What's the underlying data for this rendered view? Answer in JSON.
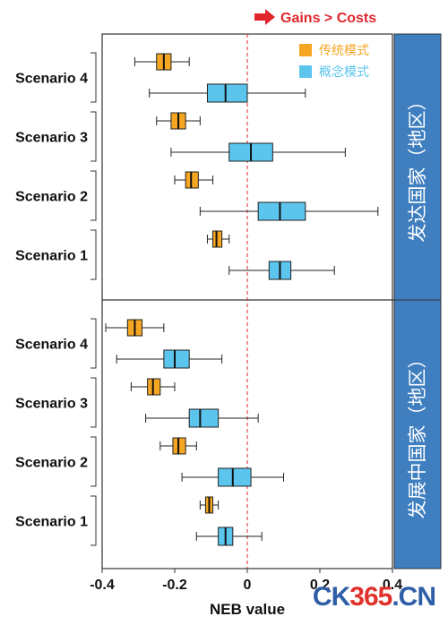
{
  "chart_data": {
    "type": "boxplot",
    "annotation": "Gains > Costs",
    "xlabel": "NEB value",
    "xlim": [
      -0.4,
      0.4
    ],
    "x_ticks": [
      "-0.4",
      "-0.2",
      "0",
      "0.2",
      "0.4"
    ],
    "legend": {
      "position": "top-right",
      "entries": [
        {
          "label": "传统模式",
          "color": "#f5a623"
        },
        {
          "label": "概念模式",
          "color": "#5bc5ee"
        }
      ]
    },
    "panels": [
      {
        "label": "发达国家（地区）",
        "scenarios": [
          {
            "name": "Scenario 4",
            "traditional": {
              "min": -0.31,
              "q1": -0.25,
              "median": -0.23,
              "q3": -0.21,
              "max": -0.16
            },
            "concept": {
              "min": -0.27,
              "q1": -0.11,
              "median": -0.06,
              "q3": 0.0,
              "max": 0.16
            }
          },
          {
            "name": "Scenario 3",
            "traditional": {
              "min": -0.25,
              "q1": -0.21,
              "median": -0.19,
              "q3": -0.17,
              "max": -0.13
            },
            "concept": {
              "min": -0.21,
              "q1": -0.05,
              "median": 0.01,
              "q3": 0.07,
              "max": 0.27
            }
          },
          {
            "name": "Scenario 2",
            "traditional": {
              "min": -0.2,
              "q1": -0.17,
              "median": -0.155,
              "q3": -0.135,
              "max": -0.095
            },
            "concept": {
              "min": -0.13,
              "q1": 0.03,
              "median": 0.09,
              "q3": 0.16,
              "max": 0.36
            }
          },
          {
            "name": "Scenario 1",
            "traditional": {
              "min": -0.11,
              "q1": -0.095,
              "median": -0.085,
              "q3": -0.07,
              "max": -0.05
            },
            "concept": {
              "min": -0.05,
              "q1": 0.06,
              "median": 0.09,
              "q3": 0.12,
              "max": 0.24
            }
          }
        ]
      },
      {
        "label": "发展中国家（地区）",
        "scenarios": [
          {
            "name": "Scenario 4",
            "traditional": {
              "min": -0.39,
              "q1": -0.33,
              "median": -0.31,
              "q3": -0.29,
              "max": -0.23
            },
            "concept": {
              "min": -0.36,
              "q1": -0.23,
              "median": -0.2,
              "q3": -0.16,
              "max": -0.07
            }
          },
          {
            "name": "Scenario 3",
            "traditional": {
              "min": -0.32,
              "q1": -0.275,
              "median": -0.26,
              "q3": -0.24,
              "max": -0.2
            },
            "concept": {
              "min": -0.28,
              "q1": -0.16,
              "median": -0.13,
              "q3": -0.08,
              "max": 0.03
            }
          },
          {
            "name": "Scenario 2",
            "traditional": {
              "min": -0.24,
              "q1": -0.205,
              "median": -0.19,
              "q3": -0.17,
              "max": -0.14
            },
            "concept": {
              "min": -0.18,
              "q1": -0.08,
              "median": -0.04,
              "q3": 0.01,
              "max": 0.1
            }
          },
          {
            "name": "Scenario 1",
            "traditional": {
              "min": -0.13,
              "q1": -0.115,
              "median": -0.105,
              "q3": -0.095,
              "max": -0.08
            },
            "concept": {
              "min": -0.14,
              "q1": -0.08,
              "median": -0.06,
              "q3": -0.04,
              "max": 0.04
            }
          }
        ]
      }
    ]
  },
  "watermark": {
    "part1": "CK",
    "part2": "365",
    "part3": ".CN"
  }
}
